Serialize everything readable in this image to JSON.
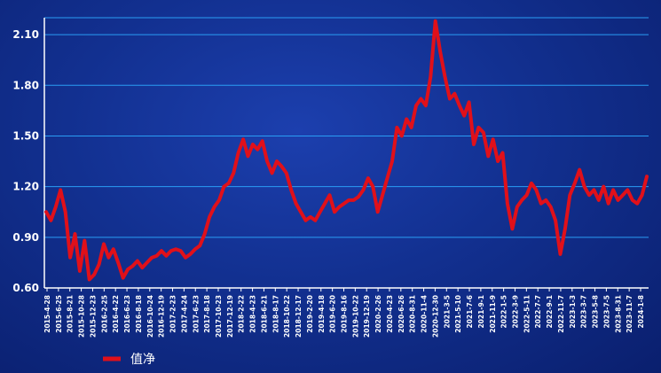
{
  "chart_data": {
    "type": "line",
    "title": "",
    "xlabel": "",
    "ylabel": "",
    "ylim": [
      0.6,
      2.2
    ],
    "y_ticks": [
      "0.60",
      "0.90",
      "1.20",
      "1.50",
      "1.80",
      "2.10"
    ],
    "x_tick_labels": [
      "2015-4-28",
      "2015-6-25",
      "2015-8-21",
      "2015-10-28",
      "2015-12-23",
      "2016-2-25",
      "2016-4-22",
      "2016-6-23",
      "2016-8-18",
      "2016-10-24",
      "2016-12-19",
      "2017-2-23",
      "2017-4-24",
      "2017-6-23",
      "2017-8-18",
      "2017-10-23",
      "2017-12-19",
      "2018-2-22",
      "2018-4-23",
      "2018-6-21",
      "2018-8-17",
      "2018-10-22",
      "2018-12-17",
      "2019-2-20",
      "2019-4-18",
      "2019-6-20",
      "2019-8-16",
      "2019-10-22",
      "2019-12-19",
      "2020-2-26",
      "2020-4-23",
      "2020-6-26",
      "2020-8-31",
      "2020-11-4",
      "2020-12-30",
      "2021-3-5",
      "2021-5-10",
      "2021-7-6",
      "2021-9-1",
      "2021-11-9",
      "2022-1-5",
      "2022-3-9",
      "2022-5-11",
      "2022-7-7",
      "2022-9-1",
      "2022-11-7",
      "2023-1-3",
      "2023-3-7",
      "2023-5-8",
      "2023-7-5",
      "2023-8-31",
      "2023-11-7",
      "2024-1-8"
    ],
    "grid": true,
    "legend_position": "bottom-left",
    "series": [
      {
        "name": "值净",
        "color": "#e0101a",
        "values": [
          1.05,
          1.0,
          1.08,
          1.18,
          1.05,
          0.78,
          0.92,
          0.7,
          0.88,
          0.65,
          0.68,
          0.74,
          0.86,
          0.78,
          0.83,
          0.75,
          0.66,
          0.71,
          0.73,
          0.76,
          0.72,
          0.75,
          0.78,
          0.79,
          0.82,
          0.79,
          0.82,
          0.83,
          0.82,
          0.78,
          0.8,
          0.83,
          0.85,
          0.92,
          1.02,
          1.08,
          1.12,
          1.2,
          1.22,
          1.28,
          1.4,
          1.48,
          1.38,
          1.45,
          1.42,
          1.47,
          1.35,
          1.28,
          1.35,
          1.32,
          1.28,
          1.18,
          1.1,
          1.05,
          1.0,
          1.02,
          1.0,
          1.05,
          1.1,
          1.15,
          1.05,
          1.08,
          1.1,
          1.12,
          1.12,
          1.14,
          1.18,
          1.25,
          1.2,
          1.05,
          1.15,
          1.25,
          1.35,
          1.55,
          1.5,
          1.6,
          1.55,
          1.68,
          1.72,
          1.68,
          1.85,
          2.18,
          2.0,
          1.85,
          1.72,
          1.75,
          1.68,
          1.62,
          1.7,
          1.45,
          1.55,
          1.52,
          1.38,
          1.48,
          1.35,
          1.4,
          1.1,
          0.95,
          1.08,
          1.12,
          1.15,
          1.22,
          1.18,
          1.1,
          1.12,
          1.08,
          1.0,
          0.8,
          0.95,
          1.15,
          1.22,
          1.3,
          1.2,
          1.15,
          1.18,
          1.12,
          1.2,
          1.1,
          1.18,
          1.12,
          1.15,
          1.18,
          1.12,
          1.1,
          1.15,
          1.26
        ]
      }
    ]
  }
}
